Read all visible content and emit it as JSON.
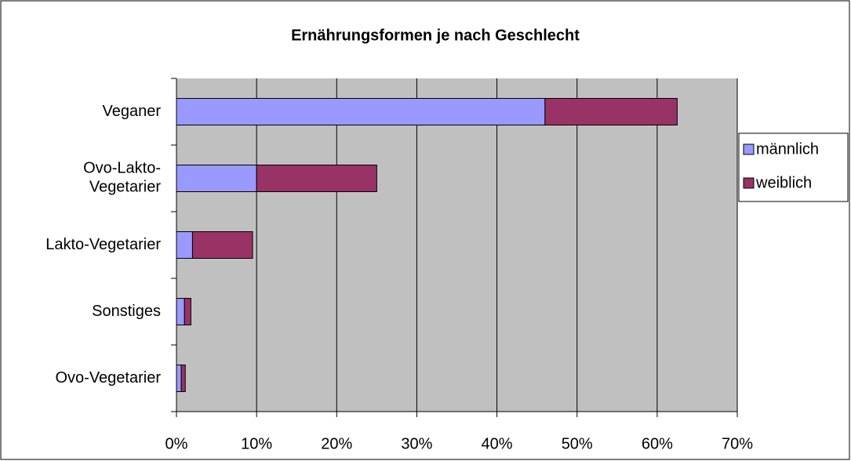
{
  "chart_data": {
    "type": "stacked-barh",
    "title": "Ernährungsformen je nach Geschlecht",
    "categories": [
      "Veganer",
      "Ovo-Lakto-\nVegetarier",
      "Lakto-Vegetarier",
      "Sonstiges",
      "Ovo-Vegetarier"
    ],
    "series": [
      {
        "name": "männlich",
        "color": "#9999ff",
        "values": [
          46,
          10,
          2,
          1,
          0.6
        ]
      },
      {
        "name": "weiblich",
        "color": "#993366",
        "values": [
          16.5,
          15,
          7.5,
          0.8,
          0.5
        ]
      }
    ],
    "xlim": [
      0,
      70
    ],
    "xticks": [
      {
        "value": 0,
        "label": "0%"
      },
      {
        "value": 10,
        "label": "10%"
      },
      {
        "value": 20,
        "label": "20%"
      },
      {
        "value": 30,
        "label": "30%"
      },
      {
        "value": 40,
        "label": "40%"
      },
      {
        "value": 50,
        "label": "50%"
      },
      {
        "value": 60,
        "label": "60%"
      },
      {
        "value": 70,
        "label": "70%"
      }
    ],
    "grid": true,
    "legend": "right",
    "plot_background": "#c0c0c0"
  }
}
